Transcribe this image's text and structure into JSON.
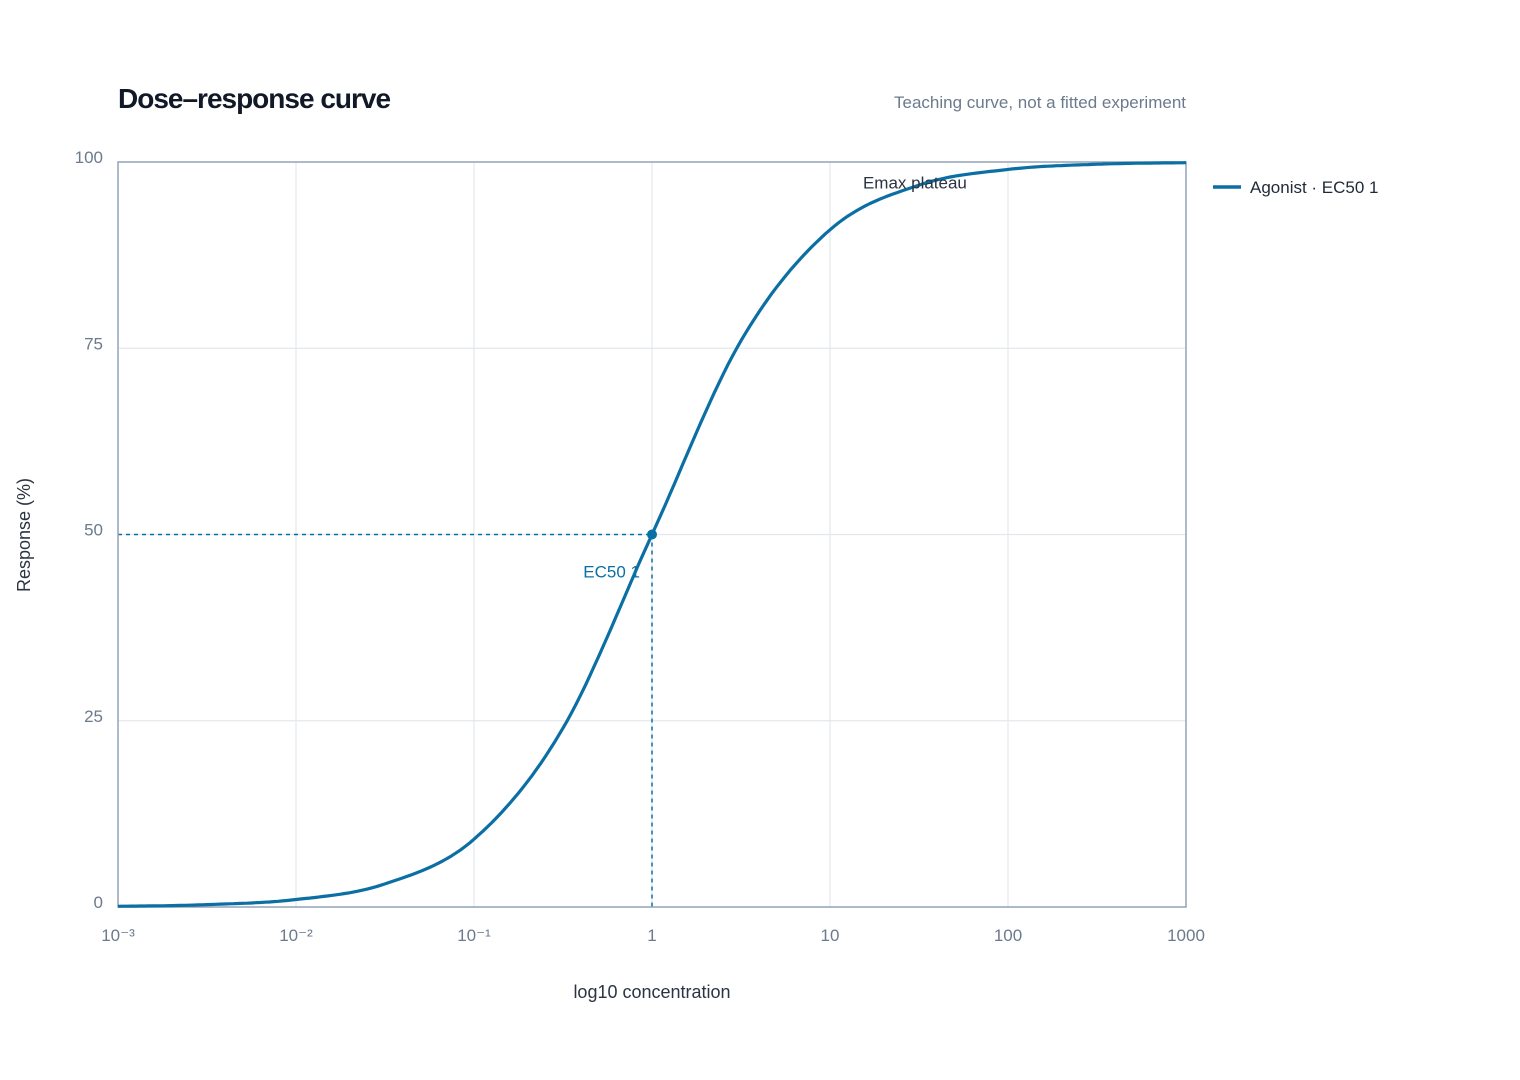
{
  "chart_data": {
    "type": "line",
    "title": "Dose–response curve",
    "subtitle": "Teaching curve, not a fitted experiment",
    "xlabel": "log10 concentration",
    "ylabel": "Response (%)",
    "x_scale": "log10",
    "xlim": [
      0.001,
      1000
    ],
    "ylim": [
      0,
      100
    ],
    "x_ticks": [
      {
        "value": 0.001,
        "label": "10⁻³"
      },
      {
        "value": 0.01,
        "label": "10⁻²"
      },
      {
        "value": 0.1,
        "label": "10⁻¹"
      },
      {
        "value": 1,
        "label": "1"
      },
      {
        "value": 10,
        "label": "10"
      },
      {
        "value": 100,
        "label": "100"
      },
      {
        "value": 1000,
        "label": "1000"
      }
    ],
    "y_ticks": [
      {
        "value": 0,
        "label": "0"
      },
      {
        "value": 25,
        "label": "25"
      },
      {
        "value": 50,
        "label": "50"
      },
      {
        "value": 75,
        "label": "75"
      },
      {
        "value": 100,
        "label": "100"
      }
    ],
    "grid": true,
    "legend_position": "right",
    "series": [
      {
        "name": "Agonist · EC50 1",
        "color": "#0b6fa4",
        "x": [
          0.001,
          0.00316,
          0.01,
          0.0316,
          0.1,
          0.316,
          1,
          3.16,
          10,
          31.6,
          100,
          316,
          1000
        ],
        "y": [
          0.1,
          0.32,
          1.0,
          3.1,
          9.1,
          24.0,
          50.0,
          76.0,
          90.9,
          96.9,
          99.0,
          99.7,
          99.9
        ]
      }
    ],
    "annotations": [
      {
        "type": "point",
        "x": 1,
        "y": 50,
        "label": "EC50 1",
        "color": "#0b6fa4"
      },
      {
        "type": "text",
        "x": 30,
        "y": 97,
        "label": "Emax plateau"
      }
    ]
  }
}
